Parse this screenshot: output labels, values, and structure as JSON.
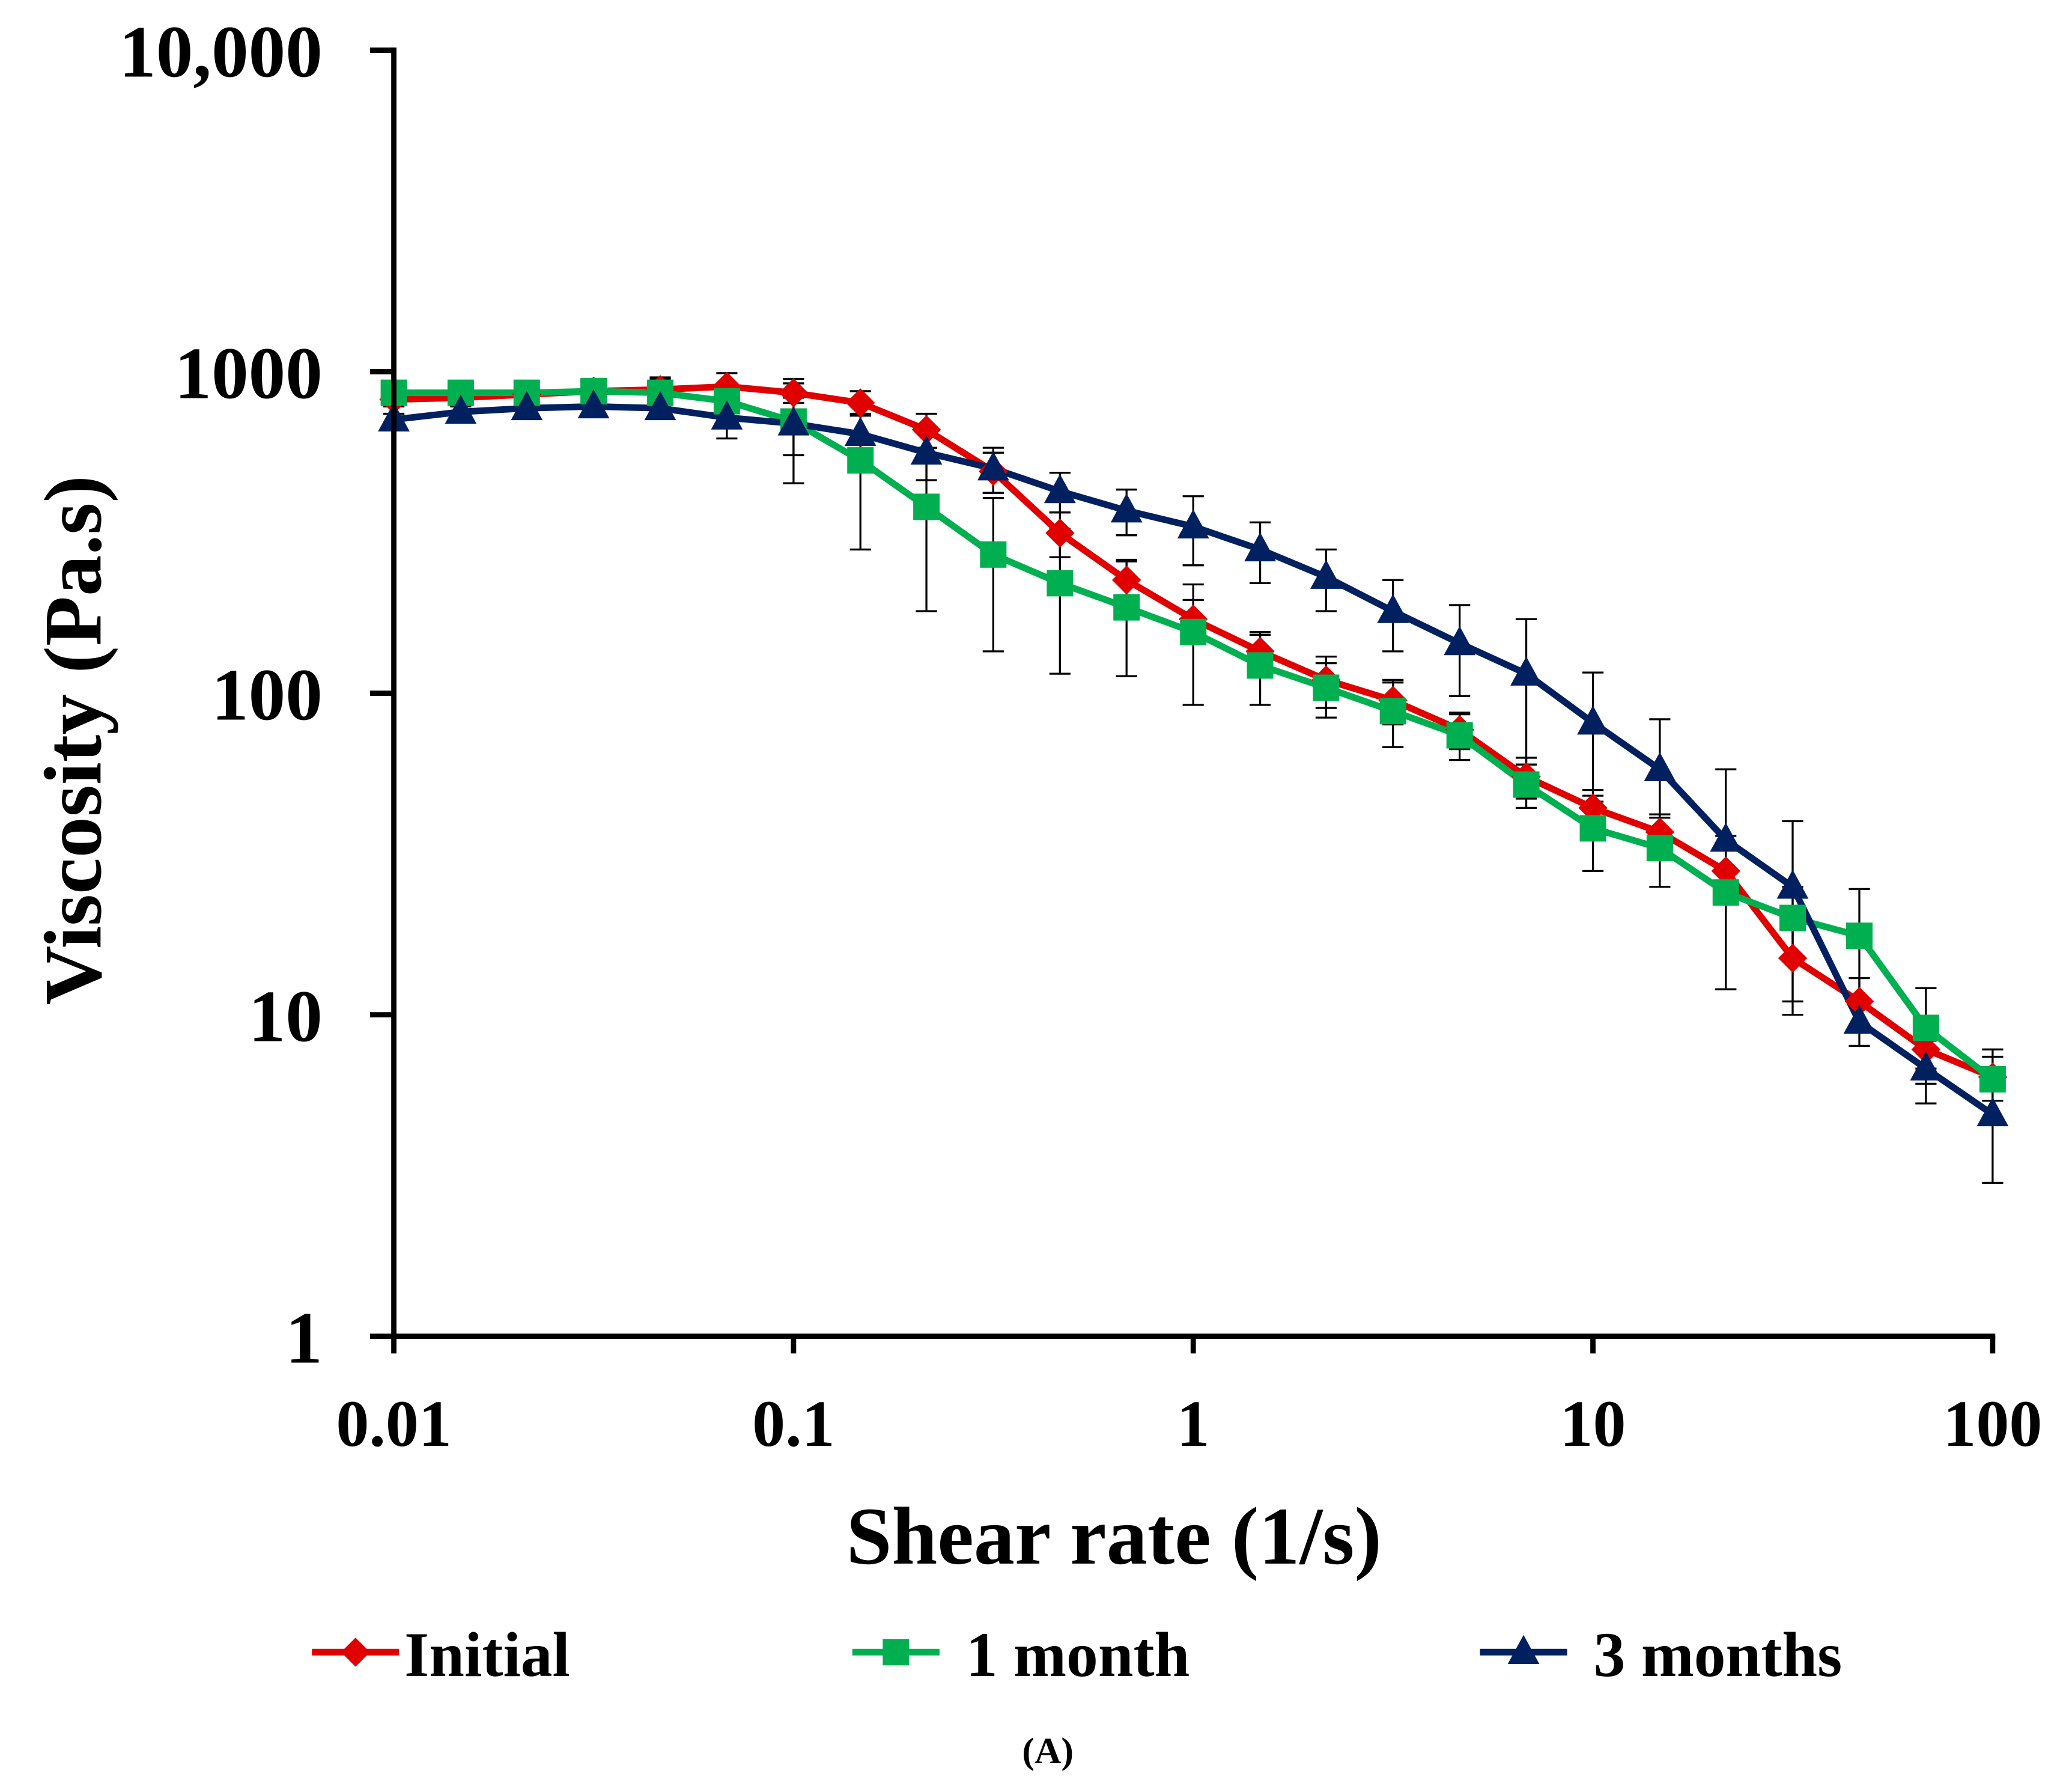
{
  "chart_data": {
    "type": "line",
    "title": "",
    "xlabel": "Shear rate (1/s)",
    "ylabel": "Viscosity (Pa.s)",
    "xscale": "log",
    "yscale": "log",
    "xlim": [
      0.01,
      100
    ],
    "ylim": [
      1,
      10000
    ],
    "xticks": [
      0.01,
      0.1,
      1,
      10,
      100
    ],
    "xtick_labels": [
      "0.01",
      "0.1",
      "1",
      "10",
      "100"
    ],
    "yticks": [
      1,
      10,
      100,
      1000,
      10000
    ],
    "ytick_labels": [
      "1",
      "10",
      "100",
      "1000",
      "10,000"
    ],
    "grid": false,
    "legend_position": "bottom",
    "caption": "(A)",
    "x": [
      0.01,
      0.0147,
      0.0215,
      0.0316,
      0.0464,
      0.0681,
      0.1,
      0.147,
      0.215,
      0.316,
      0.464,
      0.681,
      1,
      1.47,
      2.15,
      3.16,
      4.64,
      6.81,
      10,
      14.7,
      21.5,
      31.6,
      46.4,
      68.1,
      100
    ],
    "series": [
      {
        "name": "Initial",
        "color": "#e00000",
        "marker": "diamond",
        "values": [
          820,
          830,
          850,
          870,
          880,
          900,
          860,
          800,
          660,
          490,
          315,
          225,
          170,
          135,
          110,
          95,
          77,
          55,
          44,
          37,
          28,
          15,
          11,
          7.8,
          6.4
        ],
        "error": [
          40,
          40,
          50,
          60,
          70,
          90,
          60,
          70,
          80,
          70,
          50,
          35,
          25,
          20,
          20,
          15,
          10,
          8,
          6,
          5,
          6,
          4,
          2,
          1,
          1
        ]
      },
      {
        "name": "1 month",
        "color": "#00b050",
        "marker": "square",
        "values": [
          860,
          860,
          860,
          870,
          860,
          810,
          700,
          530,
          380,
          270,
          220,
          185,
          155,
          122,
          104,
          88,
          74,
          52,
          38,
          33,
          24,
          20,
          17.6,
          9.1,
          6.3
        ],
        "error": [
          50,
          50,
          60,
          80,
          100,
          60,
          250,
          250,
          200,
          135,
          105,
          72,
          63,
          30,
          20,
          20,
          12,
          8,
          10,
          8,
          12,
          5,
          7,
          3,
          1.5
        ]
      },
      {
        "name": "3 months",
        "color": "#002060",
        "marker": "triangle",
        "values": [
          710,
          750,
          770,
          780,
          770,
          720,
          690,
          640,
          560,
          500,
          425,
          370,
          330,
          280,
          230,
          180,
          143,
          115,
          81,
          58,
          35,
          25,
          9.5,
          6.8,
          4.9
        ],
        "error": [
          30,
          30,
          40,
          40,
          40,
          100,
          140,
          100,
          100,
          80,
          60,
          60,
          80,
          60,
          50,
          45,
          45,
          55,
          35,
          25,
          23,
          15,
          1.5,
          1.5,
          1.9
        ]
      }
    ]
  }
}
